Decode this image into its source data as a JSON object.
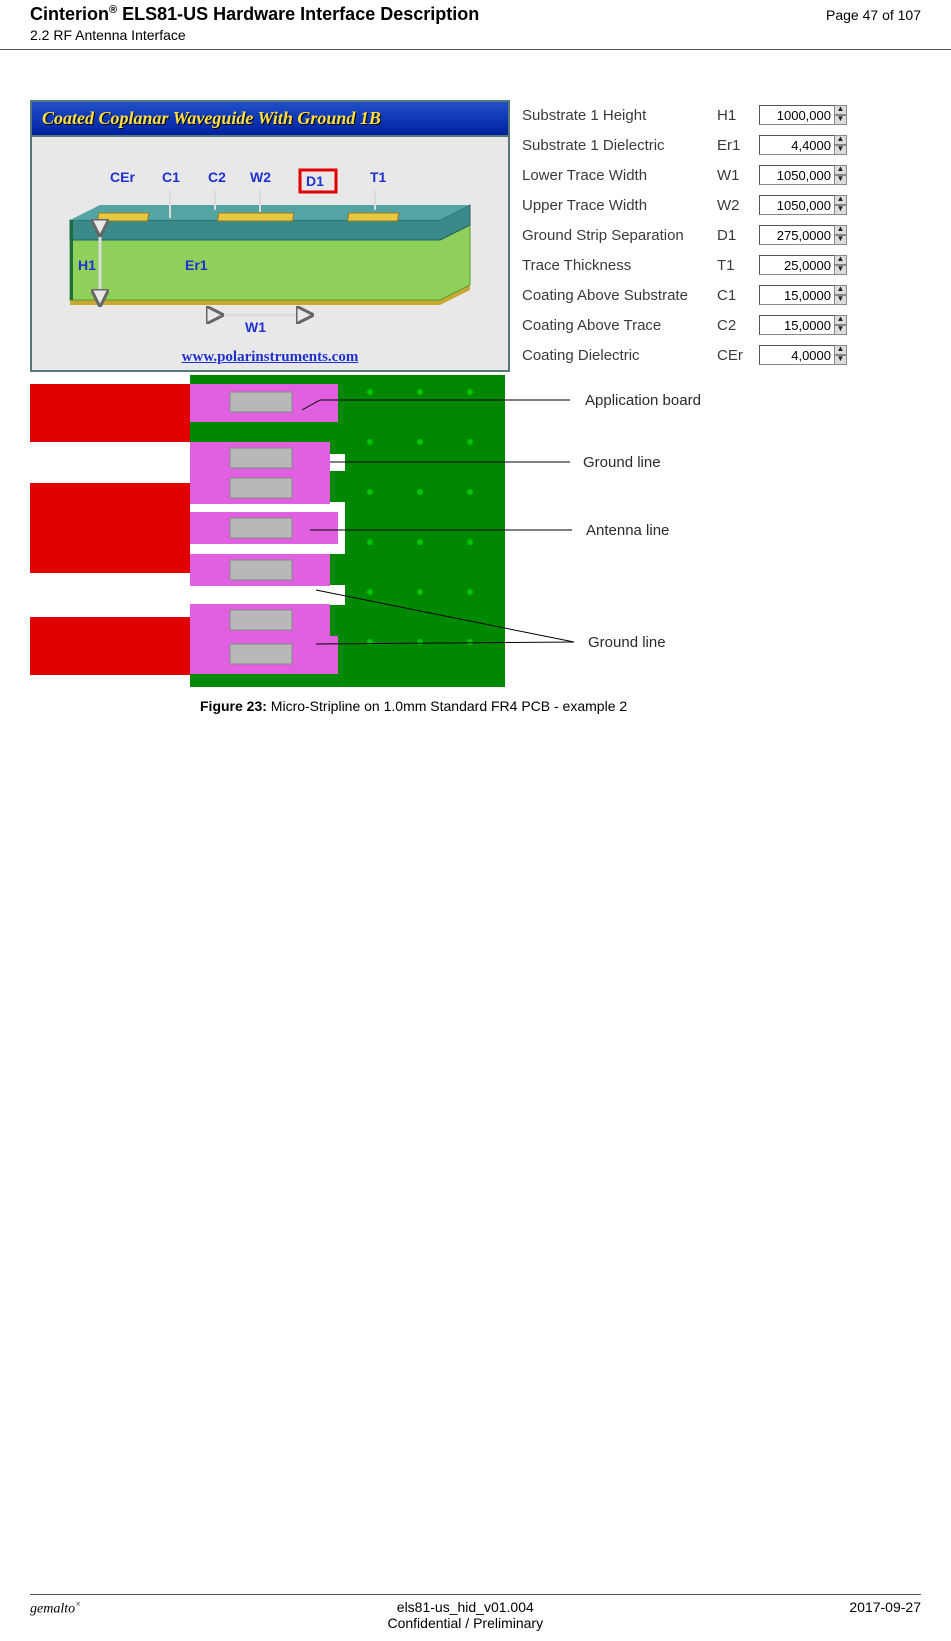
{
  "header": {
    "doc_title_1": "Cinterion",
    "doc_title_sup": "®",
    "doc_title_2": " ELS81-US Hardware Interface Description",
    "subsection": "2.2 RF Antenna Interface",
    "page_info": "Page 47 of 107"
  },
  "polar": {
    "title": "Coated Coplanar Waveguide With Ground 1B",
    "url": "www.polarinstruments.com",
    "labels": {
      "CEr": "CEr",
      "C1": "C1",
      "C2": "C2",
      "W2": "W2",
      "D1": "D1",
      "T1": "T1",
      "H1": "H1",
      "Er1": "Er1",
      "W1": "W1"
    }
  },
  "params": [
    {
      "label": "Substrate 1 Height",
      "sym": "H1",
      "val": "1000,000"
    },
    {
      "label": "Substrate 1 Dielectric",
      "sym": "Er1",
      "val": "4,4000"
    },
    {
      "label": "Lower Trace Width",
      "sym": "W1",
      "val": "1050,000"
    },
    {
      "label": "Upper Trace Width",
      "sym": "W2",
      "val": "1050,000"
    },
    {
      "label": "Ground Strip Separation",
      "sym": "D1",
      "val": "275,0000"
    },
    {
      "label": "Trace Thickness",
      "sym": "T1",
      "val": "25,0000"
    },
    {
      "label": "Coating Above Substrate",
      "sym": "C1",
      "val": "15,0000"
    },
    {
      "label": "Coating Above Trace",
      "sym": "C2",
      "val": "15,0000"
    },
    {
      "label": "Coating Dielectric",
      "sym": "CEr",
      "val": "4,0000"
    }
  ],
  "callouts": {
    "app_board": "Application board",
    "ground1": "Ground line",
    "antenna": "Antenna line",
    "ground2": "Ground line"
  },
  "figure": {
    "num": "Figure 23:",
    "text": "  Micro-Stripline on 1.0mm Standard FR4 PCB - example 2"
  },
  "footer": {
    "brand": "gemalto",
    "tm": "×",
    "file": "els81-us_hid_v01.004",
    "conf": "Confidential / Preliminary",
    "date": "2017-09-27"
  },
  "colors": {
    "green": "#008000",
    "darkgreen": "#1a6f3b",
    "lightgreen": "#8ed05a",
    "yellow": "#e8c840",
    "magenta": "#e060e0",
    "red": "#e00000",
    "white": "#ffffff",
    "gray": "#b8b8b8",
    "teal": "#3a8a8a"
  }
}
